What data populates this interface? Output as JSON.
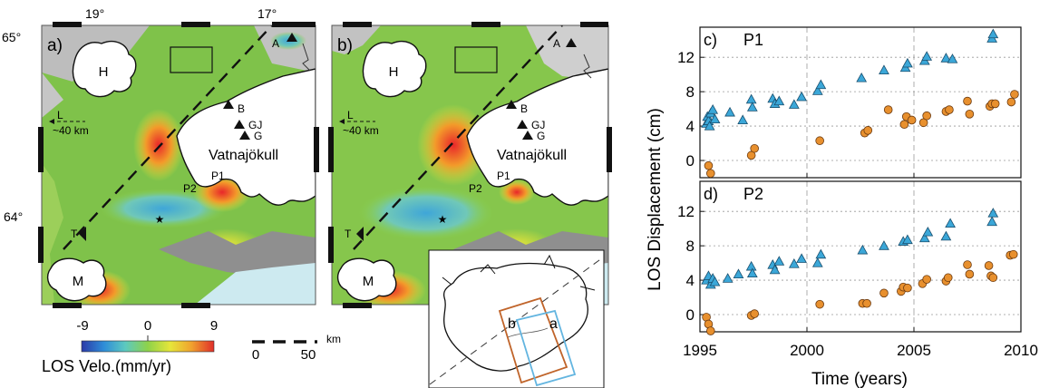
{
  "maps": {
    "lon_labels": [
      "19°",
      "17°"
    ],
    "lat_labels": [
      "65°",
      "64°"
    ],
    "panel_a": {
      "label": "a)",
      "places": {
        "h": "H",
        "m": "M",
        "vat": "Vatnajökull",
        "p1": "P1",
        "p2": "P2",
        "t": "T"
      },
      "stations": [
        "A",
        "B",
        "GJ",
        "G"
      ],
      "look_label": "L",
      "look_distance": "~40 km"
    },
    "panel_b": {
      "label": "b)",
      "places": {
        "h": "H",
        "m": "M",
        "vat": "Vatnajökull",
        "p1": "P1",
        "p2": "P2",
        "t": "T"
      },
      "stations": [
        "A",
        "B",
        "GJ",
        "G"
      ],
      "look_label": "L",
      "look_distance": "~40 km"
    },
    "colorbar": {
      "ticks": [
        "-9",
        "0",
        "9"
      ],
      "label": "LOS Velo.(mm/yr)",
      "colors": [
        "#2b3aa8",
        "#2f8ed8",
        "#5cc9c0",
        "#8ed24a",
        "#e6e63a",
        "#f0a22e",
        "#e02e2a"
      ]
    },
    "scale": {
      "ticks": [
        "0",
        "50"
      ],
      "unit": "km"
    },
    "inset": {
      "a": "a",
      "b": "b",
      "frame_a_color": "#63b5e0",
      "frame_b_color": "#c0642a"
    },
    "colors": {
      "ice": "#ffffff",
      "land_green": "#7fc24a",
      "sea": "#cdeaf0",
      "sediment": "#8f8f8f"
    }
  },
  "chart_data": {
    "type": "scatter",
    "xlabel": "Time (years)",
    "ylabel": "LOS Displacement (cm)",
    "xlim": [
      1995,
      2010
    ],
    "xticks": [
      "1995",
      "2000",
      "2005",
      "2010"
    ],
    "ylim": [
      -2,
      15.5
    ],
    "yticks": [
      "0",
      "4",
      "8",
      "12"
    ],
    "grid": true,
    "triangle_color": "#3ba7d8",
    "circle_color": "#e8902e",
    "panels": [
      {
        "label": "c)",
        "name": "P1",
        "triangles": [
          [
            1995.3,
            4.3
          ],
          [
            1995.35,
            5.1
          ],
          [
            1995.4,
            4.6
          ],
          [
            1995.45,
            4.0
          ],
          [
            1995.5,
            5.5
          ],
          [
            1995.6,
            5.9
          ],
          [
            1995.7,
            4.8
          ],
          [
            1996.4,
            5.6
          ],
          [
            1997.0,
            4.7
          ],
          [
            1997.4,
            7.1
          ],
          [
            1997.45,
            6.2
          ],
          [
            1998.4,
            7.2
          ],
          [
            1998.5,
            6.6
          ],
          [
            1998.7,
            6.9
          ],
          [
            1999.4,
            6.5
          ],
          [
            1999.75,
            7.4
          ],
          [
            2000.5,
            8.1
          ],
          [
            2000.65,
            8.8
          ],
          [
            2002.55,
            9.6
          ],
          [
            2003.6,
            10.5
          ],
          [
            2004.6,
            10.8
          ],
          [
            2004.7,
            11.3
          ],
          [
            2005.5,
            11.6
          ],
          [
            2005.6,
            12.1
          ],
          [
            2006.5,
            11.9
          ],
          [
            2006.8,
            11.8
          ],
          [
            2008.65,
            14.2
          ],
          [
            2008.7,
            14.7
          ]
        ],
        "circles": [
          [
            1995.4,
            -0.6
          ],
          [
            1995.5,
            -1.5
          ],
          [
            1997.4,
            0.6
          ],
          [
            1997.55,
            1.4
          ],
          [
            2000.6,
            2.3
          ],
          [
            2002.7,
            3.2
          ],
          [
            2002.85,
            3.5
          ],
          [
            2003.8,
            5.9
          ],
          [
            2004.55,
            4.2
          ],
          [
            2004.65,
            5.1
          ],
          [
            2004.9,
            4.7
          ],
          [
            2005.45,
            4.4
          ],
          [
            2005.6,
            5.2
          ],
          [
            2006.5,
            5.7
          ],
          [
            2006.65,
            5.9
          ],
          [
            2007.5,
            6.9
          ],
          [
            2007.6,
            5.4
          ],
          [
            2008.55,
            6.3
          ],
          [
            2008.65,
            6.6
          ],
          [
            2008.8,
            6.6
          ],
          [
            2009.55,
            6.8
          ],
          [
            2009.7,
            7.7
          ]
        ]
      },
      {
        "label": "d)",
        "name": "P2",
        "triangles": [
          [
            1995.3,
            4.0
          ],
          [
            1995.4,
            4.5
          ],
          [
            1995.5,
            3.5
          ],
          [
            1995.6,
            4.2
          ],
          [
            1995.7,
            3.8
          ],
          [
            1996.3,
            4.2
          ],
          [
            1996.8,
            4.7
          ],
          [
            1997.4,
            5.6
          ],
          [
            1997.45,
            4.8
          ],
          [
            1998.4,
            5.8
          ],
          [
            1998.5,
            5.2
          ],
          [
            1998.7,
            6.2
          ],
          [
            1999.4,
            5.9
          ],
          [
            1999.75,
            6.5
          ],
          [
            2000.5,
            6.0
          ],
          [
            2000.65,
            7.0
          ],
          [
            2002.6,
            7.5
          ],
          [
            2003.6,
            8.0
          ],
          [
            2004.5,
            8.5
          ],
          [
            2004.7,
            8.7
          ],
          [
            2005.5,
            8.9
          ],
          [
            2005.65,
            9.6
          ],
          [
            2006.5,
            9.1
          ],
          [
            2006.7,
            10.6
          ],
          [
            2008.65,
            10.8
          ],
          [
            2008.7,
            11.8
          ]
        ],
        "circles": [
          [
            1995.3,
            -0.3
          ],
          [
            1995.4,
            -1.1
          ],
          [
            1995.5,
            -1.9
          ],
          [
            1997.4,
            -0.1
          ],
          [
            1997.55,
            0.1
          ],
          [
            2000.6,
            1.2
          ],
          [
            2002.6,
            1.3
          ],
          [
            2002.8,
            1.3
          ],
          [
            2003.6,
            2.5
          ],
          [
            2004.4,
            2.7
          ],
          [
            2004.5,
            3.2
          ],
          [
            2004.7,
            3.1
          ],
          [
            2005.4,
            3.6
          ],
          [
            2005.6,
            4.1
          ],
          [
            2006.5,
            3.9
          ],
          [
            2006.6,
            4.3
          ],
          [
            2007.5,
            5.8
          ],
          [
            2007.6,
            4.7
          ],
          [
            2008.5,
            5.7
          ],
          [
            2008.6,
            4.5
          ],
          [
            2008.7,
            4.3
          ],
          [
            2009.5,
            6.9
          ],
          [
            2009.65,
            7.0
          ]
        ]
      }
    ]
  }
}
